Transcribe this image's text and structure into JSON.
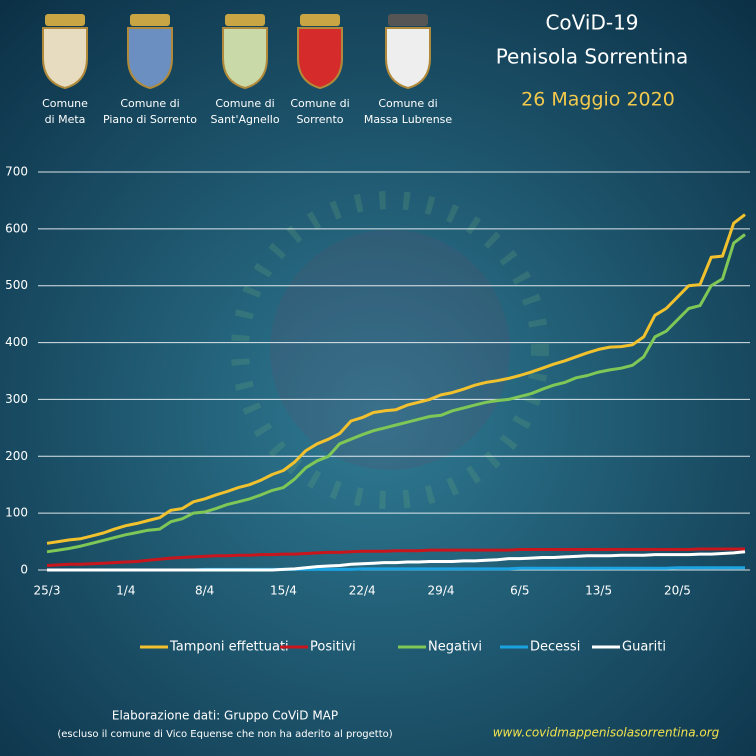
{
  "header": {
    "comuni": [
      [
        "Comune",
        "di Meta"
      ],
      [
        "Comune di",
        "Piano di Sorrento"
      ],
      [
        "Comune di",
        "Sant'Agnello"
      ],
      [
        "Comune di",
        "Sorrento"
      ],
      [
        "Comune di",
        "Massa Lubrense"
      ]
    ],
    "title": [
      "CoViD-19",
      "Penisola Sorrentina"
    ],
    "date": "26 Maggio 2020"
  },
  "chart_data": {
    "type": "line",
    "categories": [
      "25/3",
      null,
      null,
      null,
      null,
      null,
      null,
      "1/4",
      null,
      null,
      null,
      null,
      null,
      null,
      "8/4",
      null,
      null,
      null,
      null,
      null,
      null,
      "15/4",
      null,
      null,
      null,
      null,
      null,
      null,
      "22/4",
      null,
      null,
      null,
      null,
      null,
      null,
      "29/4",
      null,
      null,
      null,
      null,
      null,
      null,
      "6/5",
      null,
      null,
      null,
      null,
      null,
      null,
      "13/5",
      null,
      null,
      null,
      null,
      null,
      null,
      "20/5",
      null,
      null,
      null,
      null,
      null,
      null
    ],
    "series": [
      {
        "name": "Tamponi effettuati",
        "color": "#f2c12e",
        "values": [
          47,
          50,
          53,
          55,
          60,
          65,
          72,
          78,
          82,
          87,
          92,
          105,
          108,
          120,
          125,
          132,
          138,
          145,
          150,
          158,
          168,
          175,
          190,
          210,
          222,
          230,
          240,
          262,
          268,
          277,
          280,
          282,
          290,
          295,
          300,
          308,
          312,
          318,
          325,
          330,
          333,
          337,
          342,
          348,
          355,
          362,
          368,
          375,
          382,
          388,
          392,
          393,
          396,
          410,
          448,
          460,
          480,
          500,
          502,
          550,
          552,
          610,
          625
        ]
      },
      {
        "name": "Positivi",
        "color": "#c9161d",
        "values": [
          8,
          9,
          10,
          10,
          11,
          12,
          13,
          14,
          15,
          17,
          19,
          21,
          22,
          23,
          24,
          25,
          25,
          26,
          26,
          27,
          27,
          28,
          28,
          29,
          30,
          31,
          31,
          32,
          33,
          33,
          33,
          34,
          34,
          34,
          35,
          35,
          35,
          35,
          35,
          35,
          35,
          35,
          36,
          36,
          36,
          36,
          36,
          36,
          36,
          36,
          36,
          36,
          36,
          36,
          36,
          36,
          36,
          36,
          37,
          37,
          37,
          37,
          37
        ]
      },
      {
        "name": "Negativi",
        "color": "#7fc756",
        "values": [
          32,
          35,
          38,
          42,
          47,
          52,
          57,
          62,
          66,
          70,
          72,
          85,
          90,
          100,
          102,
          108,
          115,
          120,
          125,
          132,
          140,
          145,
          160,
          180,
          192,
          200,
          222,
          230,
          238,
          245,
          250,
          255,
          260,
          265,
          270,
          272,
          280,
          285,
          290,
          295,
          298,
          300,
          305,
          310,
          318,
          325,
          330,
          338,
          342,
          348,
          352,
          355,
          360,
          375,
          410,
          420,
          440,
          460,
          465,
          500,
          512,
          575,
          590
        ]
      },
      {
        "name": "Decessi",
        "color": "#1aa3e0",
        "values": [
          0,
          0,
          0,
          0,
          0,
          0,
          0,
          0,
          0,
          0,
          0,
          0,
          0,
          0,
          1,
          1,
          1,
          1,
          1,
          1,
          1,
          1,
          1,
          1,
          1,
          1,
          1,
          1,
          2,
          2,
          2,
          2,
          2,
          2,
          2,
          2,
          2,
          2,
          2,
          2,
          2,
          2,
          3,
          3,
          3,
          3,
          3,
          3,
          3,
          3,
          3,
          3,
          3,
          3,
          3,
          3,
          4,
          4,
          4,
          4,
          4,
          4,
          4
        ]
      },
      {
        "name": "Guariti",
        "color": "#ffffff",
        "values": [
          0,
          0,
          0,
          0,
          0,
          0,
          0,
          0,
          0,
          0,
          0,
          0,
          0,
          0,
          0,
          0,
          0,
          0,
          0,
          0,
          0,
          1,
          2,
          4,
          6,
          7,
          8,
          10,
          11,
          12,
          13,
          13,
          14,
          14,
          15,
          15,
          15,
          16,
          16,
          17,
          18,
          20,
          20,
          21,
          22,
          22,
          23,
          24,
          25,
          25,
          25,
          26,
          26,
          26,
          27,
          27,
          27,
          27,
          28,
          28,
          29,
          30,
          32
        ]
      }
    ],
    "ylim": [
      0,
      700
    ],
    "yticks": [
      0,
      100,
      200,
      300,
      400,
      500,
      600,
      700
    ],
    "grid": true
  },
  "footer": {
    "credit": "Elaborazione dati: Gruppo CoViD MAP",
    "note": "(escluso il comune di Vico Equense  che non ha aderito  al progetto)",
    "url": "www.covidmappenisolasorrentina.org"
  }
}
